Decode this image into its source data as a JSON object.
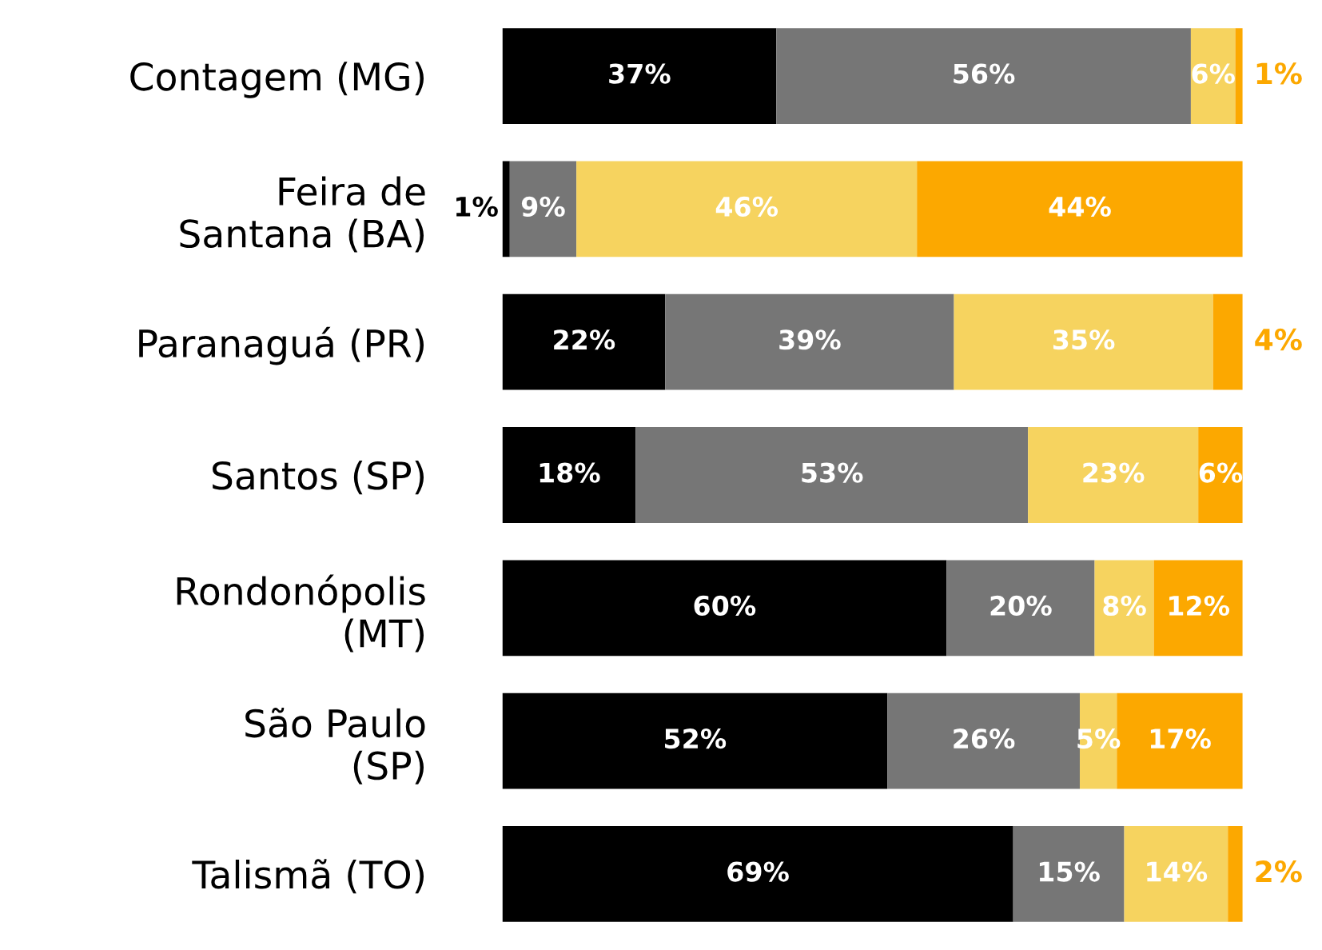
{
  "chart_data": {
    "type": "bar",
    "orientation": "horizontal",
    "stacked": true,
    "legend": false,
    "grid": false,
    "tick_labels": "y",
    "categories": [
      "Contagem (MG)",
      "Feira de\nSantana (BA)",
      "Paranaguá (PR)",
      "Santos (SP)",
      "Rondonópolis\n(MT)",
      "São Paulo\n(SP)",
      "Talismã (TO)"
    ],
    "series": [
      {
        "color": "#000000",
        "values": [
          37,
          1,
          22,
          18,
          60,
          52,
          69
        ],
        "value_labels": [
          "37%",
          "1%",
          "22%",
          "18%",
          "60%",
          "52%",
          "69%"
        ]
      },
      {
        "color": "#767676",
        "values": [
          56,
          9,
          39,
          53,
          20,
          26,
          15
        ],
        "value_labels": [
          "56%",
          "9%",
          "39%",
          "53%",
          "20%",
          "26%",
          "15%"
        ]
      },
      {
        "color": "#f6d35f",
        "values": [
          6,
          46,
          35,
          23,
          8,
          5,
          14
        ],
        "value_labels": [
          "6%",
          "46%",
          "35%",
          "23%",
          "8%",
          "5%",
          "14%"
        ]
      },
      {
        "color": "#fca800",
        "values": [
          1,
          44,
          4,
          6,
          12,
          17,
          2
        ],
        "value_labels": [
          "1%",
          "44%",
          "4%",
          "6%",
          "12%",
          "17%",
          "2%"
        ]
      }
    ]
  }
}
